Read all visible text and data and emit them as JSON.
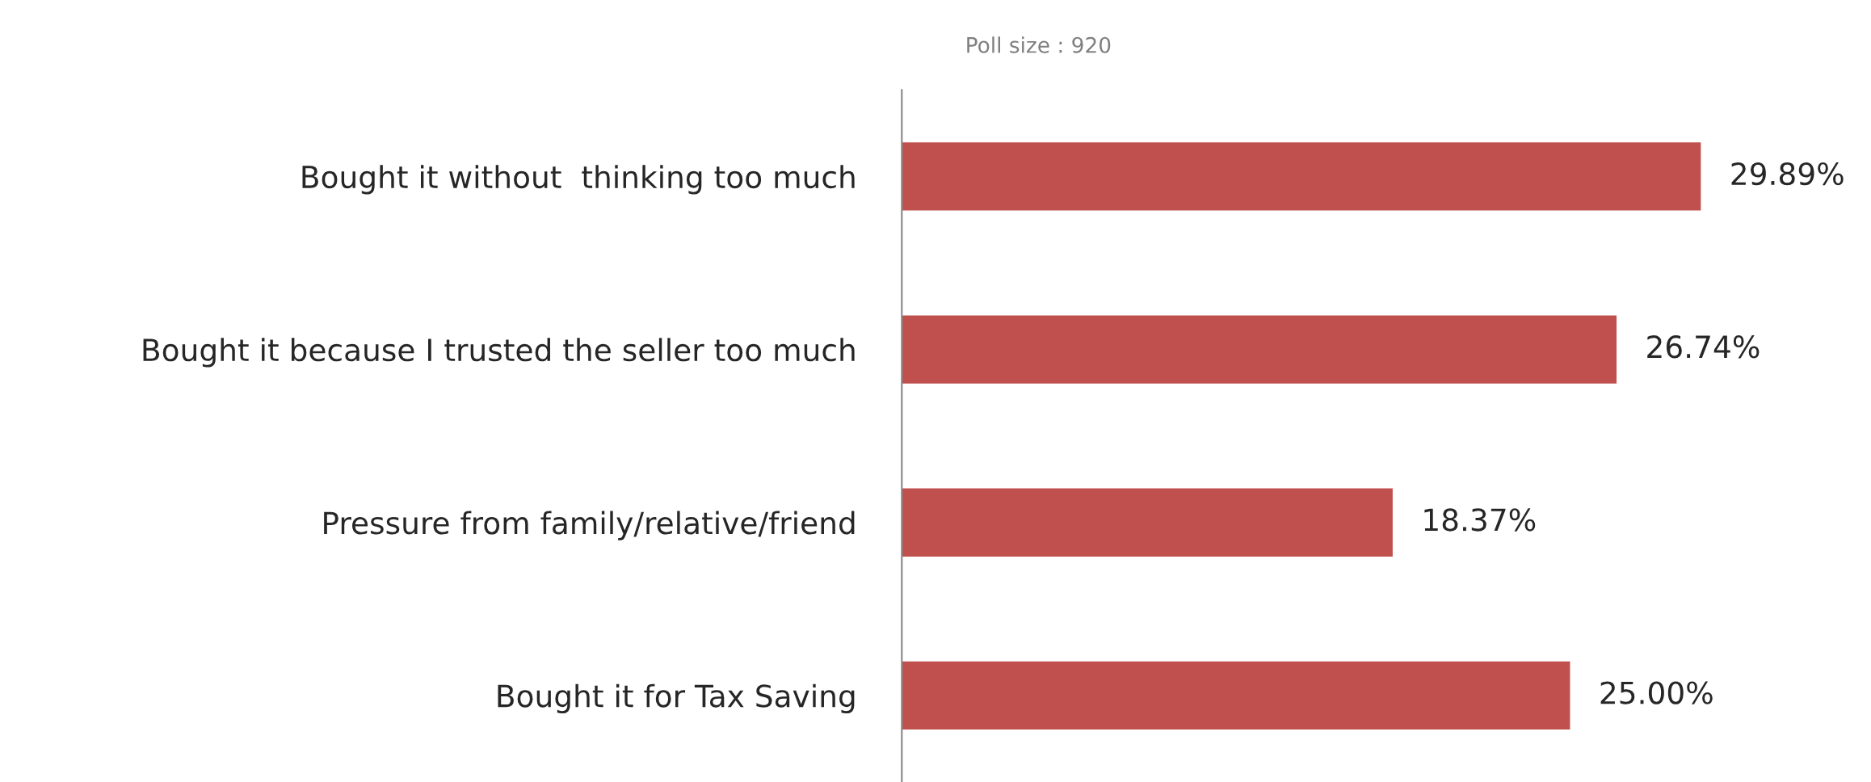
{
  "chart_data": {
    "type": "bar",
    "orientation": "horizontal",
    "categories": [
      "Bought it without  thinking too much",
      "Bought it because I trusted the seller too much",
      "Pressure from family/relative/friend",
      "Bought it for Tax Saving"
    ],
    "values": [
      29.89,
      26.74,
      18.37,
      25.0
    ],
    "value_labels": [
      "29.89%",
      "26.74%",
      "18.37%",
      "25.00%"
    ],
    "color": "#c0504d",
    "annotations": [
      "Poll size : 920"
    ],
    "grid": false,
    "legend": false
  }
}
